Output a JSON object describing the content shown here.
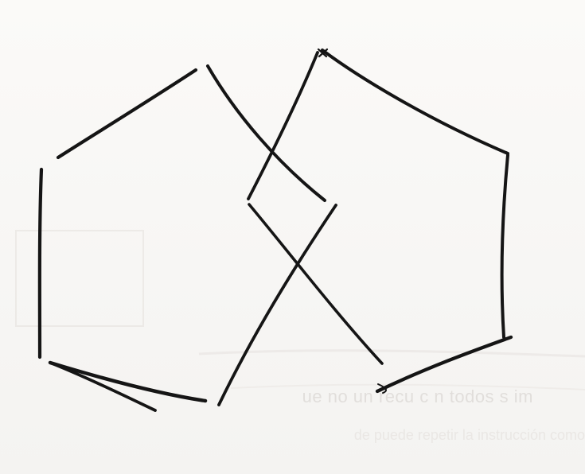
{
  "image": {
    "background_color": "#f7f6f4",
    "ink_color": "#151515",
    "show_through_color": "#c9c4c0"
  },
  "show_through_text": {
    "line1": "ue no un recu  c n todos  s  im",
    "line2": "de puede repetir la instrucción como"
  }
}
